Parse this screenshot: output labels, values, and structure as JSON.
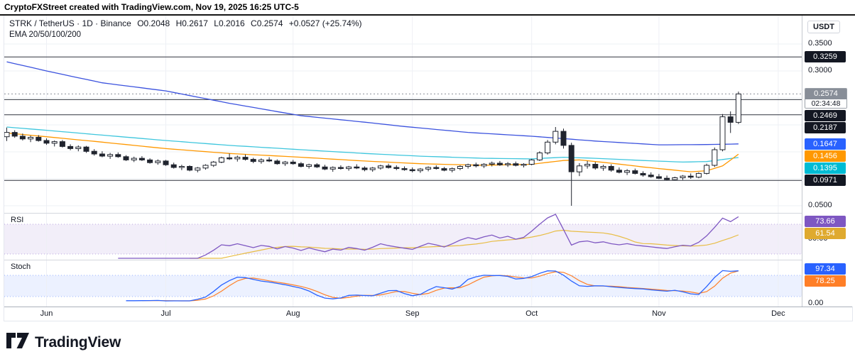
{
  "credit_bar": {
    "text": "CryptoFXStreet created with TradingView.com, Nov 19, 2025 16:25 UTC-5"
  },
  "header": {
    "symbol": "STRK / TetherUS · 1D · Binance",
    "open": "O0.2048",
    "high": "H0.2617",
    "low": "L0.2016",
    "close": "C0.2574",
    "change": "+0.0527 (+25.74%)",
    "indicator": "EMA 20/50/100/200"
  },
  "price_scale": {
    "currency": "USDT",
    "plain_ticks": [
      0.35,
      0.3,
      0.05
    ],
    "badges": [
      {
        "label": "0.3259",
        "price": 0.3259,
        "color": "#131722"
      },
      {
        "label": "0.2469",
        "price": 0.2469,
        "color": "#131722"
      },
      {
        "label": "0.2187",
        "price": 0.2187,
        "color": "#131722"
      },
      {
        "label": "0.1647",
        "price": 0.1647,
        "color": "#2962ff"
      },
      {
        "label": "0.1456",
        "price": 0.1456,
        "color": "#ff9800"
      },
      {
        "label": "0.1395",
        "price": 0.1395,
        "color": "#00bcd4"
      },
      {
        "label": "0.0971",
        "price": 0.0971,
        "color": "#131722"
      }
    ],
    "last": {
      "label": "0.2574",
      "price": 0.2574,
      "countdown": "02:34:48"
    }
  },
  "rsi_pane": {
    "label": "RSI",
    "value": "73.66",
    "value_color": "#7e57c2",
    "ma_value": "61.54",
    "ma_color": "#dfaa2f",
    "axis_label": "50.00"
  },
  "stoch_pane": {
    "label": "Stoch",
    "k_value": "97.34",
    "k_color": "#2962ff",
    "d_value": "78.25",
    "d_color": "#ff7f27",
    "axis_label": "0.00"
  },
  "footer": {
    "logo_text": "TradingView"
  },
  "chart_data": {
    "type": "candlestick",
    "title": "STRK / TetherUS 1D Binance",
    "price_range": [
      0.05,
      0.35
    ],
    "grid_step": 0.05,
    "horizontal_lines": [
      0.3259,
      0.2469,
      0.2187,
      0.0971
    ],
    "last_price": 0.2574,
    "x_axis_months": [
      {
        "label": "Jun",
        "bar": 5
      },
      {
        "label": "Jul",
        "bar": 20
      },
      {
        "label": "Aug",
        "bar": 36
      },
      {
        "label": "Sep",
        "bar": 51
      },
      {
        "label": "Oct",
        "bar": 66
      },
      {
        "label": "Nov",
        "bar": 82
      },
      {
        "label": "Dec",
        "bar": 97
      }
    ],
    "candles": [
      [
        "05-22",
        0.178,
        0.195,
        0.17,
        0.186
      ],
      [
        "05-24",
        0.186,
        0.19,
        0.176,
        0.179
      ],
      [
        "05-26",
        0.179,
        0.184,
        0.171,
        0.174
      ],
      [
        "05-28",
        0.174,
        0.18,
        0.168,
        0.177
      ],
      [
        "05-30",
        0.177,
        0.181,
        0.169,
        0.171
      ],
      [
        "06-01",
        0.171,
        0.175,
        0.163,
        0.166
      ],
      [
        "06-03",
        0.166,
        0.171,
        0.16,
        0.169
      ],
      [
        "06-05",
        0.169,
        0.172,
        0.158,
        0.16
      ],
      [
        "06-07",
        0.16,
        0.164,
        0.153,
        0.156
      ],
      [
        "06-09",
        0.156,
        0.162,
        0.151,
        0.159
      ],
      [
        "06-11",
        0.159,
        0.161,
        0.148,
        0.151
      ],
      [
        "06-13",
        0.151,
        0.155,
        0.143,
        0.146
      ],
      [
        "06-15",
        0.146,
        0.151,
        0.14,
        0.142
      ],
      [
        "06-17",
        0.142,
        0.148,
        0.137,
        0.145
      ],
      [
        "06-19",
        0.145,
        0.149,
        0.139,
        0.141
      ],
      [
        "06-21",
        0.141,
        0.144,
        0.133,
        0.135
      ],
      [
        "06-23",
        0.135,
        0.141,
        0.131,
        0.138
      ],
      [
        "06-25",
        0.138,
        0.142,
        0.133,
        0.135
      ],
      [
        "06-27",
        0.135,
        0.138,
        0.128,
        0.13
      ],
      [
        "06-29",
        0.13,
        0.136,
        0.126,
        0.133
      ],
      [
        "07-01",
        0.133,
        0.135,
        0.124,
        0.126
      ],
      [
        "07-03",
        0.126,
        0.13,
        0.119,
        0.121
      ],
      [
        "07-05",
        0.121,
        0.126,
        0.116,
        0.123
      ],
      [
        "07-07",
        0.123,
        0.125,
        0.114,
        0.116
      ],
      [
        "07-09",
        0.116,
        0.122,
        0.112,
        0.12
      ],
      [
        "07-11",
        0.12,
        0.127,
        0.117,
        0.125
      ],
      [
        "07-13",
        0.125,
        0.133,
        0.122,
        0.131
      ],
      [
        "07-15",
        0.131,
        0.141,
        0.129,
        0.139
      ],
      [
        "07-17",
        0.139,
        0.147,
        0.135,
        0.137
      ],
      [
        "07-19",
        0.137,
        0.143,
        0.132,
        0.14
      ],
      [
        "07-21",
        0.14,
        0.145,
        0.134,
        0.136
      ],
      [
        "07-23",
        0.136,
        0.139,
        0.129,
        0.132
      ],
      [
        "07-25",
        0.132,
        0.138,
        0.128,
        0.135
      ],
      [
        "07-27",
        0.135,
        0.14,
        0.131,
        0.133
      ],
      [
        "07-29",
        0.133,
        0.136,
        0.126,
        0.128
      ],
      [
        "07-31",
        0.128,
        0.133,
        0.124,
        0.131
      ],
      [
        "08-02",
        0.131,
        0.135,
        0.126,
        0.128
      ],
      [
        "08-04",
        0.128,
        0.131,
        0.121,
        0.123
      ],
      [
        "08-06",
        0.123,
        0.128,
        0.119,
        0.126
      ],
      [
        "08-08",
        0.126,
        0.129,
        0.12,
        0.122
      ],
      [
        "08-10",
        0.122,
        0.126,
        0.116,
        0.118
      ],
      [
        "08-12",
        0.118,
        0.123,
        0.113,
        0.121
      ],
      [
        "08-14",
        0.121,
        0.125,
        0.117,
        0.119
      ],
      [
        "08-16",
        0.119,
        0.124,
        0.115,
        0.122
      ],
      [
        "08-18",
        0.122,
        0.127,
        0.118,
        0.12
      ],
      [
        "08-20",
        0.12,
        0.123,
        0.114,
        0.117
      ],
      [
        "08-22",
        0.117,
        0.122,
        0.113,
        0.12
      ],
      [
        "08-24",
        0.12,
        0.126,
        0.117,
        0.124
      ],
      [
        "08-26",
        0.124,
        0.128,
        0.119,
        0.121
      ],
      [
        "08-28",
        0.121,
        0.125,
        0.116,
        0.119
      ],
      [
        "08-30",
        0.119,
        0.123,
        0.115,
        0.117
      ],
      [
        "09-01",
        0.117,
        0.121,
        0.112,
        0.115
      ],
      [
        "09-03",
        0.115,
        0.12,
        0.111,
        0.118
      ],
      [
        "09-05",
        0.118,
        0.123,
        0.114,
        0.121
      ],
      [
        "09-07",
        0.121,
        0.125,
        0.117,
        0.119
      ],
      [
        "09-09",
        0.119,
        0.122,
        0.114,
        0.116
      ],
      [
        "09-11",
        0.116,
        0.121,
        0.112,
        0.119
      ],
      [
        "09-13",
        0.119,
        0.125,
        0.116,
        0.123
      ],
      [
        "09-15",
        0.123,
        0.128,
        0.119,
        0.126
      ],
      [
        "09-17",
        0.126,
        0.13,
        0.121,
        0.124
      ],
      [
        "09-19",
        0.124,
        0.129,
        0.12,
        0.127
      ],
      [
        "09-21",
        0.127,
        0.132,
        0.123,
        0.129
      ],
      [
        "09-23",
        0.129,
        0.133,
        0.124,
        0.126
      ],
      [
        "09-25",
        0.126,
        0.131,
        0.122,
        0.128
      ],
      [
        "09-27",
        0.128,
        0.132,
        0.123,
        0.125
      ],
      [
        "09-29",
        0.125,
        0.129,
        0.121,
        0.127
      ],
      [
        "10-01",
        0.127,
        0.137,
        0.125,
        0.135
      ],
      [
        "10-03",
        0.135,
        0.151,
        0.133,
        0.148
      ],
      [
        "10-05",
        0.148,
        0.172,
        0.145,
        0.168
      ],
      [
        "10-07",
        0.168,
        0.196,
        0.164,
        0.188
      ],
      [
        "10-09",
        0.188,
        0.193,
        0.156,
        0.162
      ],
      [
        "10-11",
        0.162,
        0.167,
        0.05,
        0.113
      ],
      [
        "10-13",
        0.113,
        0.129,
        0.105,
        0.124
      ],
      [
        "10-15",
        0.124,
        0.133,
        0.119,
        0.127
      ],
      [
        "10-17",
        0.127,
        0.131,
        0.117,
        0.12
      ],
      [
        "10-19",
        0.12,
        0.126,
        0.115,
        0.123
      ],
      [
        "10-21",
        0.123,
        0.127,
        0.113,
        0.116
      ],
      [
        "10-23",
        0.116,
        0.121,
        0.11,
        0.112
      ],
      [
        "10-25",
        0.112,
        0.118,
        0.107,
        0.115
      ],
      [
        "10-27",
        0.115,
        0.119,
        0.108,
        0.11
      ],
      [
        "10-29",
        0.11,
        0.114,
        0.104,
        0.107
      ],
      [
        "10-31",
        0.107,
        0.112,
        0.102,
        0.104
      ],
      [
        "11-02",
        0.104,
        0.109,
        0.0995,
        0.101
      ],
      [
        "11-04",
        0.101,
        0.106,
        0.097,
        0.0985
      ],
      [
        "11-06",
        0.0985,
        0.104,
        0.0971,
        0.102
      ],
      [
        "11-08",
        0.102,
        0.107,
        0.098,
        0.105
      ],
      [
        "11-10",
        0.105,
        0.11,
        0.1,
        0.103
      ],
      [
        "11-12",
        0.103,
        0.112,
        0.101,
        0.11
      ],
      [
        "11-14",
        0.11,
        0.128,
        0.108,
        0.125
      ],
      [
        "11-16",
        0.125,
        0.158,
        0.122,
        0.154
      ],
      [
        "11-17",
        0.154,
        0.22,
        0.151,
        0.215
      ],
      [
        "11-18",
        0.215,
        0.225,
        0.185,
        0.2048
      ],
      [
        "11-19",
        0.2048,
        0.2617,
        0.2016,
        0.2574
      ]
    ],
    "emas": [
      {
        "name": "EMA 200",
        "color": "#3b52de",
        "last": 0.1647,
        "points": [
          [
            0,
            0.317
          ],
          [
            5,
            0.3
          ],
          [
            12,
            0.278
          ],
          [
            20,
            0.263
          ],
          [
            28,
            0.24
          ],
          [
            37,
            0.217
          ],
          [
            45,
            0.205
          ],
          [
            50,
            0.197
          ],
          [
            58,
            0.186
          ],
          [
            66,
            0.179
          ],
          [
            74,
            0.17
          ],
          [
            82,
            0.163
          ],
          [
            88,
            0.1635
          ],
          [
            92,
            0.1647
          ]
        ]
      },
      {
        "name": "EMA 100",
        "color": "#3ec6dd",
        "last": 0.1395,
        "points": [
          [
            0,
            0.196
          ],
          [
            5,
            0.19
          ],
          [
            12,
            0.181
          ],
          [
            20,
            0.171
          ],
          [
            28,
            0.162
          ],
          [
            37,
            0.154
          ],
          [
            45,
            0.147
          ],
          [
            52,
            0.142
          ],
          [
            60,
            0.138
          ],
          [
            66,
            0.137
          ],
          [
            70,
            0.14
          ],
          [
            74,
            0.138
          ],
          [
            80,
            0.134
          ],
          [
            85,
            0.131
          ],
          [
            88,
            0.132
          ],
          [
            92,
            0.1395
          ]
        ]
      },
      {
        "name": "EMA 50",
        "color": "#ff9800",
        "last": 0.1456,
        "points": [
          [
            0,
            0.185
          ],
          [
            5,
            0.178
          ],
          [
            12,
            0.168
          ],
          [
            20,
            0.156
          ],
          [
            28,
            0.147
          ],
          [
            37,
            0.14
          ],
          [
            45,
            0.133
          ],
          [
            52,
            0.128
          ],
          [
            60,
            0.125
          ],
          [
            66,
            0.127
          ],
          [
            70,
            0.134
          ],
          [
            72,
            0.135
          ],
          [
            76,
            0.129
          ],
          [
            80,
            0.122
          ],
          [
            84,
            0.116
          ],
          [
            86,
            0.113
          ],
          [
            88,
            0.115
          ],
          [
            90,
            0.124
          ],
          [
            92,
            0.1456
          ]
        ]
      }
    ],
    "rsi": {
      "period": 14,
      "ma_period": 10,
      "line_color": "#7e57c2",
      "ma_color": "#e8bd45",
      "band": [
        30,
        70
      ],
      "last": 73.66,
      "ma_last": 61.54
    },
    "stoch": {
      "k": 14,
      "smooth": 3,
      "d": 3,
      "k_color": "#2962ff",
      "d_color": "#ff7f27",
      "band": [
        20,
        80
      ],
      "last_k": 97.34,
      "last_d": 78.25
    }
  }
}
